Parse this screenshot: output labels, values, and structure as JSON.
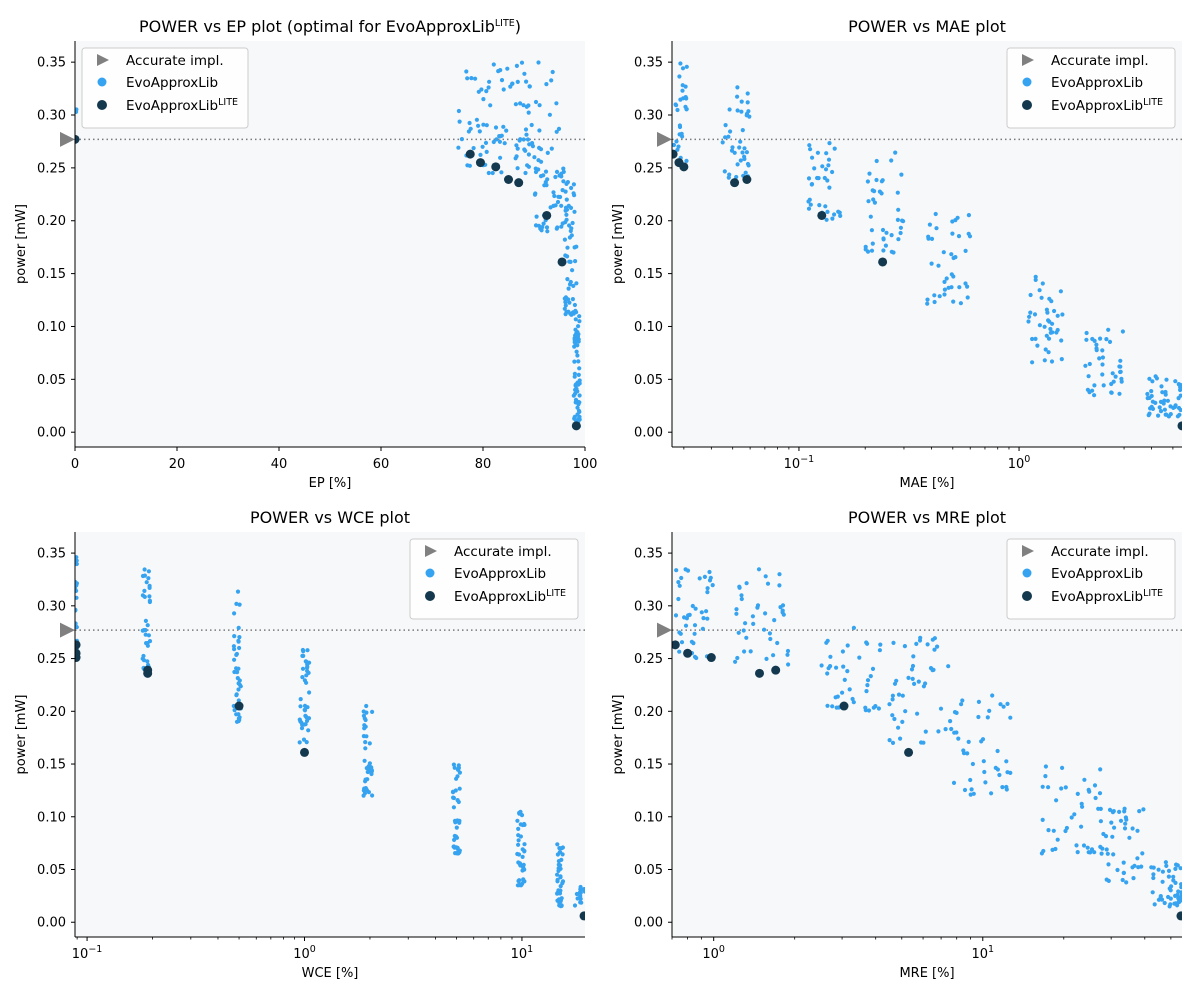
{
  "colors": {
    "accurate": "#808080",
    "evo": "#36a3f0",
    "lite": "#14394e",
    "plot_bg": "#f7f8fa",
    "ref_line": "#7a7a7a"
  },
  "legend": {
    "accurate": "Accurate impl.",
    "evo": "EvoApproxLib",
    "lite_base": "EvoApproxLib",
    "lite_sup": "LITE"
  },
  "chart_data": [
    {
      "id": "ep",
      "type": "scatter",
      "title_base": "POWER vs EP plot (optimal for EvoApproxLib",
      "title_sup": "LITE",
      "title_end": ")",
      "xlabel": "EP [%]",
      "ylabel": "power [mW]",
      "xscale": "linear",
      "xlim": [
        0,
        100
      ],
      "ylim": [
        -0.014,
        0.37
      ],
      "xticks": [
        0,
        20,
        40,
        60,
        80,
        100
      ],
      "xtick_labels": [
        "0",
        "20",
        "40",
        "60",
        "80",
        "100"
      ],
      "yticks": [
        0.0,
        0.05,
        0.1,
        0.15,
        0.2,
        0.25,
        0.3,
        0.35
      ],
      "ytick_labels": [
        "0.00",
        "0.05",
        "0.10",
        "0.15",
        "0.20",
        "0.25",
        "0.30",
        "0.35"
      ],
      "accurate_power": 0.277,
      "legend_position": "top-left",
      "evo_clusters": [
        {
          "x": [
            75,
            95
          ],
          "y": [
            0.245,
            0.35
          ],
          "n": 110
        },
        {
          "x": [
            90,
            98
          ],
          "y": [
            0.19,
            0.25
          ],
          "n": 60
        },
        {
          "x": [
            96,
            98.5
          ],
          "y": [
            0.11,
            0.2
          ],
          "n": 40
        },
        {
          "x": [
            97.8,
            99
          ],
          "y": [
            0.005,
            0.11
          ],
          "n": 70
        },
        {
          "x": [
            0,
            0.3
          ],
          "y": [
            0.3,
            0.32
          ],
          "n": 3
        }
      ],
      "lite_points": [
        [
          0,
          0.277
        ],
        [
          77.5,
          0.263
        ],
        [
          79.5,
          0.255
        ],
        [
          82.5,
          0.251
        ],
        [
          85,
          0.239
        ],
        [
          87,
          0.236
        ],
        [
          92.5,
          0.205
        ],
        [
          95.5,
          0.161
        ],
        [
          98.3,
          0.006
        ]
      ]
    },
    {
      "id": "mae",
      "type": "scatter",
      "title_base": "POWER vs MAE plot",
      "title_sup": "",
      "title_end": "",
      "xlabel": "MAE [%]",
      "ylabel": "power [mW]",
      "xscale": "log",
      "xlim": [
        0.0265,
        5.5
      ],
      "ylim": [
        -0.014,
        0.37
      ],
      "xticks": [
        0.1,
        1
      ],
      "xtick_base": [
        "10",
        "10"
      ],
      "xtick_exp": [
        "−1",
        "0"
      ],
      "yticks": [
        0.0,
        0.05,
        0.1,
        0.15,
        0.2,
        0.25,
        0.3,
        0.35
      ],
      "ytick_labels": [
        "0.00",
        "0.05",
        "0.10",
        "0.15",
        "0.20",
        "0.25",
        "0.30",
        "0.35"
      ],
      "accurate_power": 0.277,
      "legend_position": "top-right",
      "evo_clusters": [
        {
          "x": [
            0.027,
            0.031
          ],
          "y": [
            0.25,
            0.35
          ],
          "n": 30
        },
        {
          "x": [
            0.045,
            0.06
          ],
          "y": [
            0.24,
            0.33
          ],
          "n": 40
        },
        {
          "x": [
            0.11,
            0.16
          ],
          "y": [
            0.2,
            0.28
          ],
          "n": 35
        },
        {
          "x": [
            0.2,
            0.3
          ],
          "y": [
            0.17,
            0.27
          ],
          "n": 40
        },
        {
          "x": [
            0.38,
            0.6
          ],
          "y": [
            0.12,
            0.21
          ],
          "n": 40
        },
        {
          "x": [
            1.1,
            1.6
          ],
          "y": [
            0.065,
            0.15
          ],
          "n": 40
        },
        {
          "x": [
            2.0,
            3.0
          ],
          "y": [
            0.035,
            0.1
          ],
          "n": 40
        },
        {
          "x": [
            3.8,
            5.5
          ],
          "y": [
            0.015,
            0.055
          ],
          "n": 50
        }
      ],
      "lite_points": [
        [
          0.0268,
          0.263
        ],
        [
          0.0285,
          0.255
        ],
        [
          0.03,
          0.251
        ],
        [
          0.051,
          0.236
        ],
        [
          0.058,
          0.239
        ],
        [
          0.127,
          0.205
        ],
        [
          0.24,
          0.161
        ],
        [
          5.5,
          0.006
        ]
      ]
    },
    {
      "id": "wce",
      "type": "scatter",
      "title_base": "POWER vs WCE plot",
      "title_sup": "",
      "title_end": "",
      "xlabel": "WCE [%]",
      "ylabel": "power [mW]",
      "xscale": "log",
      "xlim": [
        0.088,
        19.5
      ],
      "ylim": [
        -0.014,
        0.37
      ],
      "xticks": [
        0.1,
        1,
        10
      ],
      "xtick_base": [
        "10",
        "10",
        "10"
      ],
      "xtick_exp": [
        "−1",
        "0",
        "1"
      ],
      "yticks": [
        0.0,
        0.05,
        0.1,
        0.15,
        0.2,
        0.25,
        0.3,
        0.35
      ],
      "ytick_labels": [
        "0.00",
        "0.05",
        "0.10",
        "0.15",
        "0.20",
        "0.25",
        "0.30",
        "0.35"
      ],
      "accurate_power": 0.277,
      "legend_position": "top-right",
      "evo_clusters": [
        {
          "x": [
            0.088,
            0.09
          ],
          "y": [
            0.25,
            0.35
          ],
          "n": 25
        },
        {
          "x": [
            0.18,
            0.195
          ],
          "y": [
            0.24,
            0.335
          ],
          "n": 35
        },
        {
          "x": [
            0.47,
            0.51
          ],
          "y": [
            0.19,
            0.32
          ],
          "n": 40
        },
        {
          "x": [
            0.95,
            1.05
          ],
          "y": [
            0.17,
            0.27
          ],
          "n": 40
        },
        {
          "x": [
            1.85,
            2.05
          ],
          "y": [
            0.12,
            0.215
          ],
          "n": 40
        },
        {
          "x": [
            4.8,
            5.2
          ],
          "y": [
            0.065,
            0.15
          ],
          "n": 40
        },
        {
          "x": [
            9.5,
            10.3
          ],
          "y": [
            0.035,
            0.108
          ],
          "n": 40
        },
        {
          "x": [
            14.5,
            15.5
          ],
          "y": [
            0.015,
            0.075
          ],
          "n": 40
        },
        {
          "x": [
            17.5,
            19.5
          ],
          "y": [
            0.015,
            0.035
          ],
          "n": 15
        }
      ],
      "lite_points": [
        [
          0.089,
          0.263
        ],
        [
          0.089,
          0.255
        ],
        [
          0.089,
          0.251
        ],
        [
          0.19,
          0.239
        ],
        [
          0.19,
          0.236
        ],
        [
          0.5,
          0.205
        ],
        [
          1.0,
          0.161
        ],
        [
          19.3,
          0.006
        ]
      ]
    },
    {
      "id": "mre",
      "type": "scatter",
      "title_base": "POWER vs MRE plot",
      "title_sup": "",
      "title_end": "",
      "xlabel": "MRE [%]",
      "ylabel": "power [mW]",
      "xscale": "log",
      "xlim": [
        0.7,
        55
      ],
      "ylim": [
        -0.014,
        0.37
      ],
      "xticks": [
        1,
        10
      ],
      "xtick_base": [
        "10",
        "10"
      ],
      "xtick_exp": [
        "0",
        "1"
      ],
      "yticks": [
        0.0,
        0.05,
        0.1,
        0.15,
        0.2,
        0.25,
        0.3,
        0.35
      ],
      "ytick_labels": [
        "0.00",
        "0.05",
        "0.10",
        "0.15",
        "0.20",
        "0.25",
        "0.30",
        "0.35"
      ],
      "accurate_power": 0.277,
      "legend_position": "top-right",
      "evo_clusters": [
        {
          "x": [
            0.72,
            1.0
          ],
          "y": [
            0.25,
            0.35
          ],
          "n": 40
        },
        {
          "x": [
            1.2,
            1.9
          ],
          "y": [
            0.24,
            0.335
          ],
          "n": 40
        },
        {
          "x": [
            2.5,
            4.2
          ],
          "y": [
            0.2,
            0.28
          ],
          "n": 40
        },
        {
          "x": [
            4.5,
            7.5
          ],
          "y": [
            0.17,
            0.27
          ],
          "n": 45
        },
        {
          "x": [
            7.5,
            13
          ],
          "y": [
            0.12,
            0.215
          ],
          "n": 45
        },
        {
          "x": [
            16,
            28
          ],
          "y": [
            0.065,
            0.15
          ],
          "n": 45
        },
        {
          "x": [
            28,
            40
          ],
          "y": [
            0.035,
            0.108
          ],
          "n": 40
        },
        {
          "x": [
            42,
            55
          ],
          "y": [
            0.015,
            0.06
          ],
          "n": 50
        }
      ],
      "lite_points": [
        [
          0.72,
          0.263
        ],
        [
          0.8,
          0.255
        ],
        [
          0.98,
          0.251
        ],
        [
          1.48,
          0.236
        ],
        [
          1.7,
          0.239
        ],
        [
          3.05,
          0.205
        ],
        [
          5.3,
          0.161
        ],
        [
          54.5,
          0.006
        ]
      ]
    }
  ]
}
